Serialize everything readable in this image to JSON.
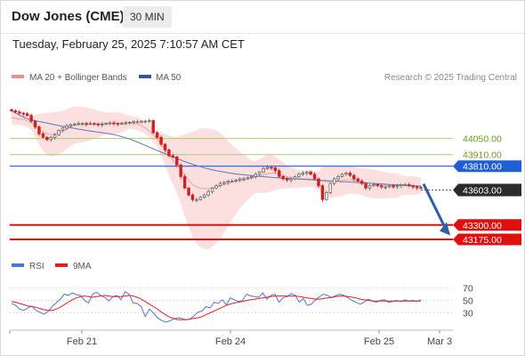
{
  "header": {
    "title": "Dow Jones (CME)",
    "interval": "30 MIN",
    "datetime": "Tuesday, February 25, 2025 7:10:57 AM CET"
  },
  "legend": {
    "ma20": "MA 20 + Bollinger Bands",
    "ma50": "MA 50",
    "copyright": "Research © 2025 Trading Central"
  },
  "rsi_legend": {
    "rsi": "RSI",
    "ma9": "9MA"
  },
  "colors": {
    "up_candle": "#666666",
    "down_candle": "#cc2222",
    "bollinger_fill": "#fbd4d4",
    "ma20": "#e8a0a0",
    "ma50": "#5a7bb5",
    "green_level": "#a8cf6c",
    "blue_level": "#1f5fd6",
    "red_level": "#e01010",
    "current_label": "#2b2b2b",
    "rsi": "#4a78d1",
    "rsi_ma": "#e02020",
    "arrow": "#2f5fa8"
  },
  "chart_data": [
    {
      "type": "line",
      "subtype": "candlestick",
      "title": "Dow Jones (CME)",
      "xlabel": "",
      "ylabel": "",
      "x_ticks": [
        "Feb 21",
        "Feb 24",
        "Feb 25",
        "Mar 3"
      ],
      "ylim": [
        43090,
        44340
      ],
      "current_price": 43603.0,
      "levels": [
        {
          "value": 44050.0,
          "label": "44050.00",
          "kind": "resistance-light"
        },
        {
          "value": 43910.0,
          "label": "43910.00",
          "kind": "resistance-light"
        },
        {
          "value": 43810.0,
          "label": "43810.00",
          "kind": "pivot"
        },
        {
          "value": 43300.0,
          "label": "43300.00",
          "kind": "support"
        },
        {
          "value": 43175.0,
          "label": "43175.00",
          "kind": "support"
        }
      ],
      "close_series": [
        44290,
        44280,
        44270,
        44265,
        44250,
        44200,
        44150,
        44090,
        44060,
        44040,
        44060,
        44080,
        44120,
        44140,
        44160,
        44170,
        44175,
        44180,
        44180,
        44175,
        44180,
        44175,
        44170,
        44175,
        44180,
        44185,
        44180,
        44178,
        44180,
        44185,
        44190,
        44195,
        44195,
        44200,
        44200,
        44205,
        44100,
        44060,
        44000,
        43950,
        43900,
        43890,
        43820,
        43720,
        43620,
        43560,
        43520,
        43520,
        43540,
        43560,
        43590,
        43620,
        43640,
        43660,
        43670,
        43680,
        43680,
        43690,
        43700,
        43700,
        43710,
        43720,
        43740,
        43760,
        43790,
        43800,
        43795,
        43770,
        43720,
        43700,
        43690,
        43700,
        43720,
        43740,
        43750,
        43760,
        43740,
        43700,
        43640,
        43520,
        43580,
        43660,
        43700,
        43720,
        43740,
        43750,
        43730,
        43700,
        43680,
        43660,
        43620,
        43640,
        43650,
        43640,
        43630,
        43630,
        43640,
        43630,
        43640,
        43650,
        43650,
        43640,
        43630,
        43625,
        43620
      ],
      "ma20_series": [
        44230,
        44225,
        44220,
        44215,
        44205,
        44185,
        44160,
        44130,
        44105,
        44090,
        44085,
        44090,
        44100,
        44110,
        44130,
        44150,
        44165,
        44170,
        44170,
        44172,
        44174,
        44175,
        44177,
        44178,
        44180,
        44182,
        44183,
        44184,
        44185,
        44187,
        44190,
        44185,
        44175,
        44160,
        44140,
        44115,
        44080,
        44045,
        44000,
        43955,
        43900,
        43860,
        43820,
        43780,
        43730,
        43690,
        43650,
        43630,
        43620,
        43615,
        43615,
        43620,
        43630,
        43640,
        43650,
        43660,
        43670,
        43680,
        43690,
        43695,
        43700,
        43705,
        43715,
        43725,
        43735,
        43745,
        43750,
        43748,
        43740,
        43730,
        43718,
        43708,
        43702,
        43700,
        43700,
        43700,
        43698,
        43694,
        43688,
        43680,
        43676,
        43674,
        43676,
        43680,
        43686,
        43692,
        43692,
        43688,
        43682,
        43675,
        43668,
        43662,
        43656,
        43652,
        43648,
        43645,
        43644,
        43643,
        43642,
        43642,
        43643,
        43643,
        43642,
        43641,
        43640
      ],
      "ma50_series": [
        44290,
        44270,
        44252,
        44236,
        44222,
        44212,
        44204,
        44197,
        44190,
        44183,
        44176,
        44169,
        44162,
        44155,
        44149,
        44143,
        44137,
        44131,
        44126,
        44120,
        44115,
        44110,
        44105,
        44100,
        44095,
        44090,
        44083,
        44075,
        44066,
        44056,
        44045,
        44032,
        44018,
        44004,
        43990,
        43975,
        43960,
        43946,
        43932,
        43918,
        43904,
        43890,
        43876,
        43862,
        43850,
        43838,
        43826,
        43815,
        43805,
        43795,
        43786,
        43778,
        43771,
        43765,
        43759,
        43753,
        43748,
        43743,
        43739,
        43735,
        43731,
        43728,
        43725,
        43722,
        43719,
        43716,
        43713,
        43710,
        43708,
        43706,
        43704,
        43702,
        43700,
        43698,
        43696,
        43694,
        43692,
        43690,
        43688,
        43686,
        43684,
        43682,
        43680,
        43678,
        43676,
        43674,
        43672,
        43670,
        43668,
        43666,
        43664,
        43662,
        43660,
        43658,
        43656,
        43654,
        43652,
        43650,
        43648,
        43646,
        43644,
        43642,
        43640,
        43638,
        43636
      ]
    },
    {
      "type": "line",
      "title": "",
      "xlabel": "",
      "ylabel": "",
      "ylim": [
        15,
        85
      ],
      "y_ticks": [
        70,
        50,
        30
      ],
      "series": [
        {
          "name": "RSI",
          "values": [
            45,
            42,
            36,
            34,
            38,
            41,
            34,
            31,
            28,
            32,
            40,
            46,
            52,
            60,
            58,
            62,
            59,
            58,
            50,
            46,
            60,
            63,
            58,
            55,
            49,
            56,
            58,
            51,
            64,
            60,
            46,
            45,
            40,
            24,
            36,
            30,
            22,
            18,
            15,
            17,
            20,
            22,
            21,
            19,
            20,
            25,
            31,
            33,
            40,
            38,
            47,
            45,
            51,
            43,
            54,
            51,
            48,
            50,
            60,
            57,
            56,
            55,
            62,
            52,
            58,
            60,
            47,
            54,
            56,
            61,
            58,
            47,
            53,
            42,
            44,
            51,
            56,
            60,
            58,
            54,
            58,
            60,
            58,
            54,
            50,
            47,
            44,
            47,
            52,
            49,
            47,
            50,
            51,
            47,
            48,
            50,
            48,
            51,
            49,
            50,
            48,
            51
          ]
        },
        {
          "name": "9MA",
          "values": [
            48,
            47,
            45,
            43,
            41,
            40,
            39,
            37,
            35,
            34,
            34,
            36,
            39,
            43,
            47,
            51,
            54,
            56,
            57,
            56,
            55,
            56,
            57,
            58,
            57,
            56,
            56,
            56,
            57,
            58,
            57,
            55,
            52,
            48,
            44,
            40,
            36,
            31,
            27,
            23,
            21,
            19,
            19,
            19,
            20,
            21,
            22,
            24,
            27,
            30,
            33,
            36,
            39,
            42,
            44,
            46,
            47,
            48,
            50,
            51,
            52,
            53,
            54,
            55,
            56,
            57,
            57,
            57,
            57,
            57,
            57,
            56,
            55,
            54,
            53,
            52,
            52,
            53,
            54,
            55,
            56,
            57,
            57,
            56,
            55,
            54,
            52,
            51,
            50,
            49,
            49,
            49,
            49,
            49,
            49,
            49,
            49,
            49,
            49,
            49,
            49,
            49
          ]
        }
      ]
    }
  ]
}
